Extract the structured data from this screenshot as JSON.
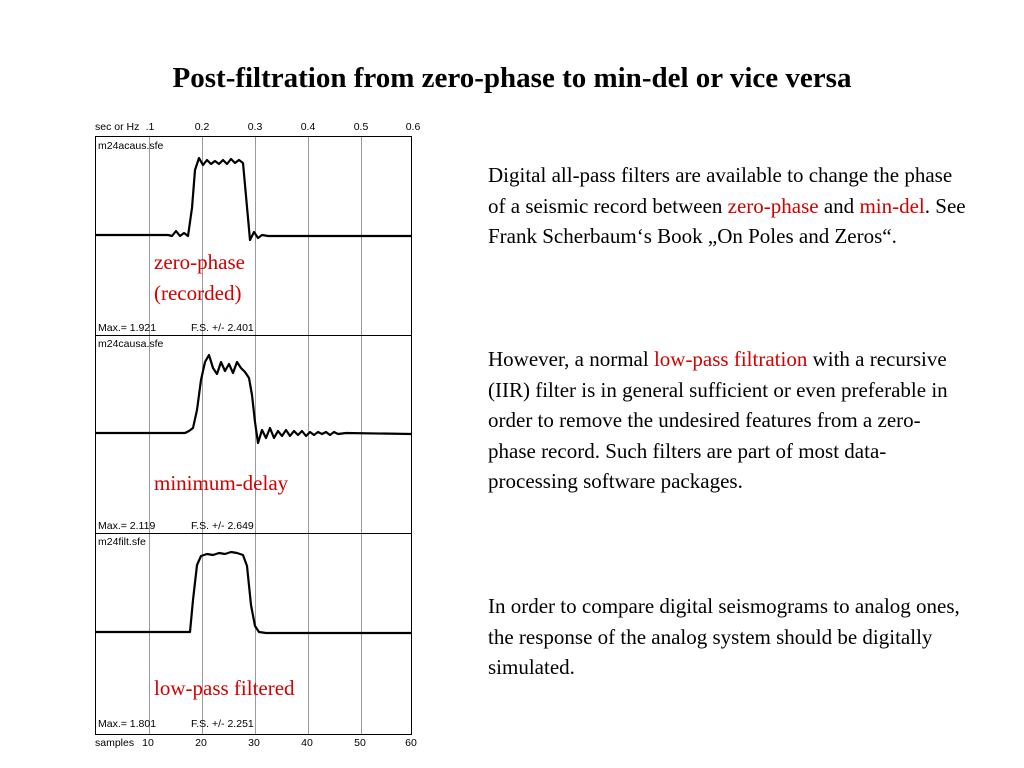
{
  "title": "Post-filtration from zero-phase to min-del or vice versa",
  "figure": {
    "top_axis_label": "sec or Hz",
    "top_ticks": [
      ".1",
      "0.2",
      "0.3",
      "0.4",
      "0.5",
      "0.6"
    ],
    "bottom_axis_label": "samples",
    "bottom_ticks": [
      "10",
      "20",
      "30",
      "40",
      "50",
      "60"
    ],
    "traces": [
      {
        "file": "m24acaus.sfe",
        "max_text": "Max.= 1.921",
        "fs_text": "F.S. +/-  2.401",
        "label_line1": "zero-phase",
        "label_line2": "(recorded)"
      },
      {
        "file": "m24causa.sfe",
        "max_text": "Max.= 2.119",
        "fs_text": "F.S. +/-  2.649",
        "label_line1": "minimum-delay",
        "label_line2": ""
      },
      {
        "file": "m24filt.sfe",
        "max_text": "Max.= 1.801",
        "fs_text": "F.S. +/-  2.251",
        "label_line1": "low-pass filtered",
        "label_line2": ""
      }
    ]
  },
  "paragraphs": {
    "p1": {
      "part1": "Digital all-pass filters are available to change the phase of a seismic record between ",
      "zero_phase": "zero-phase",
      "and": " and ",
      "min_del": "min-del",
      "part2": ". See Frank Scherbaum‘s Book „On Poles and Zeros“."
    },
    "p2": {
      "part1": "However, a normal ",
      "low_pass": "low-pass filtration",
      "part2": " with a recursive (IIR) filter is in general sufficient or even preferable in order to remove the undesired features from a zero-phase record. Such filters are part of most data-processing software packages."
    },
    "p3": {
      "text": "In order to compare digital seismograms to analog ones, the response of the analog system should be digitally simulated."
    }
  }
}
